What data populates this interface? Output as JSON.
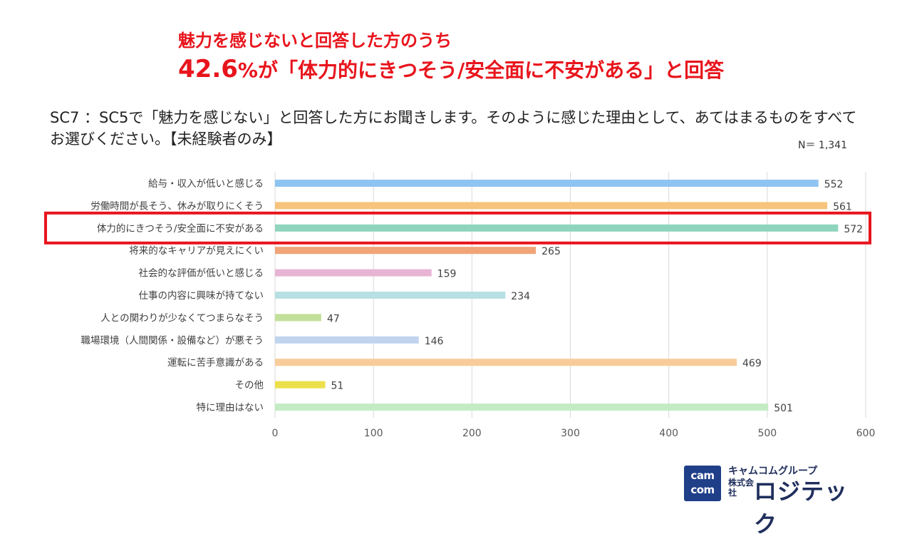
{
  "headline": {
    "line1": "魅力を感じないと回答した方のうち",
    "line2_number": "42.6",
    "line2_percent": "%",
    "line2_rest": "が「体力的にきつそう/安全面に不安がある」と回答"
  },
  "question": "SC7 ：SC5で「魅力を感じない」と回答した方にお聞きします。そのように感じた理由として、あてはまるものをすべてお選びください。【未経験者のみ】",
  "sample_size": "N＝ 1,341",
  "chart_data": {
    "type": "bar",
    "orientation": "horizontal",
    "categories": [
      "給与・収入が低いと感じる",
      "労働時間が長そう、休みが取りにくそう",
      "体力的にきつそう/安全面に不安がある",
      "将来的なキャリアが見えにくい",
      "社会的な評価が低いと感じる",
      "仕事の内容に興味が持てない",
      "人との関わりが少なくてつまらなそう",
      "職場環境（人間関係・設備など）が悪そう",
      "運転に苦手意識がある",
      "その他",
      "特に理由はない"
    ],
    "values": [
      552,
      561,
      572,
      265,
      159,
      234,
      47,
      146,
      469,
      51,
      501
    ],
    "colors": [
      "#8ec4f2",
      "#f6c47c",
      "#8fd4bd",
      "#f0a478",
      "#e8b4d4",
      "#b8e0e4",
      "#c2e09a",
      "#c0d4ee",
      "#f8cc9a",
      "#ece04a",
      "#c4ecc4"
    ],
    "xlim": [
      0,
      600
    ],
    "xticks": [
      "0",
      "100",
      "200",
      "300",
      "400",
      "500",
      "600"
    ],
    "grid": true,
    "highlight_index": 2,
    "highlight_color": "#e8141c"
  },
  "logo": {
    "mark_line1": "cam",
    "mark_line2": "com",
    "group": "キャムコムグループ",
    "kabushiki": "株式会社",
    "company": "ロジテック"
  }
}
